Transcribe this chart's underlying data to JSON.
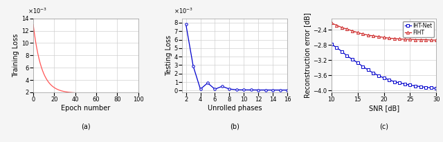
{
  "plot_a": {
    "ylabel": "Training Loss",
    "xlabel": "Epoch number",
    "title": "(a)",
    "xlim": [
      0,
      100
    ],
    "ylim": [
      0.002,
      0.014
    ],
    "yticks": [
      2,
      4,
      6,
      8,
      10,
      12,
      14
    ],
    "xticks": [
      0,
      20,
      40,
      60,
      80,
      100
    ],
    "color": "#ff5555",
    "decay_start": 0.013,
    "decay_end": 0.00185,
    "decay_tau": 8.0
  },
  "plot_b": {
    "ylabel": "Testing Loss",
    "xlabel": "Unrolled phases",
    "title": "(b)",
    "xlim": [
      1.5,
      16
    ],
    "ylim": [
      -0.0002,
      0.0085
    ],
    "xticks": [
      2,
      4,
      6,
      8,
      10,
      12,
      14,
      16
    ],
    "yticks_vals": [
      0,
      1,
      2,
      3,
      4,
      5,
      6,
      7,
      8
    ],
    "color": "#0000cc",
    "x": [
      2,
      3,
      4,
      5,
      6,
      7,
      8,
      9,
      10,
      11,
      12,
      13,
      14,
      15,
      16
    ],
    "y": [
      0.0078,
      0.0029,
      0.00017,
      0.0009,
      0.00017,
      0.0005,
      0.00019,
      9.5e-05,
      8.5e-05,
      8e-05,
      7.5e-05,
      7.2e-05,
      7e-05,
      6.8e-05,
      6.5e-05
    ]
  },
  "plot_c": {
    "ylabel": "Reconstruction error [dB]",
    "xlabel": "SNR [dB]",
    "title": "(c)",
    "xlim": [
      10,
      30
    ],
    "ylim": [
      -4.05,
      -2.1
    ],
    "xticks": [
      10,
      15,
      20,
      25,
      30
    ],
    "yticks": [
      -4.0,
      -3.6,
      -3.2,
      -2.8,
      -2.4
    ],
    "iht_net_color": "#0000cc",
    "fiht_color": "#cc2222",
    "snr": [
      10,
      11,
      12,
      13,
      14,
      15,
      16,
      17,
      18,
      19,
      20,
      21,
      22,
      23,
      24,
      25,
      26,
      27,
      28,
      29,
      30
    ],
    "iht_net_y": [
      -2.78,
      -2.87,
      -2.97,
      -3.09,
      -3.18,
      -3.27,
      -3.37,
      -3.46,
      -3.54,
      -3.61,
      -3.67,
      -3.72,
      -3.77,
      -3.8,
      -3.83,
      -3.86,
      -3.88,
      -3.9,
      -3.92,
      -3.93,
      -3.95
    ],
    "fiht_y": [
      -2.22,
      -2.28,
      -2.34,
      -2.38,
      -2.43,
      -2.47,
      -2.51,
      -2.54,
      -2.56,
      -2.58,
      -2.6,
      -2.62,
      -2.63,
      -2.64,
      -2.65,
      -2.65,
      -2.66,
      -2.66,
      -2.66,
      -2.67,
      -2.67
    ],
    "legend_labels": [
      "IHT-Net",
      "FIHT"
    ]
  },
  "figure_bgcolor": "#f5f5f5",
  "axes_bgcolor": "#ffffff",
  "grid_color": "#d0d0d0",
  "label_fontsize": 7,
  "tick_fontsize": 6,
  "caption_fontsize": 6,
  "caption_a": "(a)",
  "caption_b": "(b)",
  "caption_c": "(c)"
}
